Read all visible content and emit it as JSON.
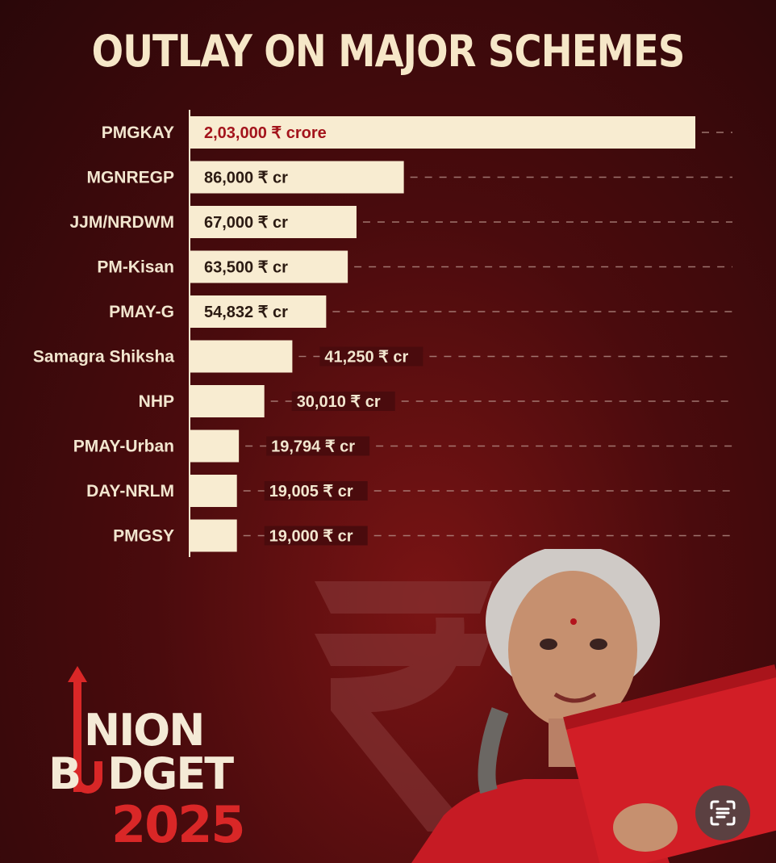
{
  "title": "OUTLAY ON MAJOR SCHEMES",
  "chart_data": {
    "type": "bar",
    "orientation": "horizontal",
    "title": "OUTLAY ON MAJOR SCHEMES",
    "xlabel": "",
    "ylabel": "",
    "xlim": [
      0,
      203000
    ],
    "grid": false,
    "categories": [
      "PMGKAY",
      "MGNREGP",
      "JJM/NRDWM",
      "PM-Kisan",
      "PMAY-G",
      "Samagra Shiksha",
      "NHP",
      "PMAY-Urban",
      "DAY-NRLM",
      "PMGSY"
    ],
    "values": [
      203000,
      86000,
      67000,
      63500,
      54832,
      41250,
      30010,
      19794,
      19005,
      19000
    ],
    "value_labels": [
      "2,03,000 ₹ crore",
      "86,000 ₹ cr",
      "67,000 ₹ cr",
      "63,500 ₹ cr",
      "54,832 ₹ cr",
      "41,250 ₹ cr",
      "30,010 ₹ cr",
      "19,794 ₹ cr",
      "19,005 ₹ cr",
      "19,000 ₹ cr"
    ],
    "label_inside": [
      true,
      true,
      true,
      true,
      true,
      false,
      false,
      false,
      false,
      false
    ],
    "highlight_index": 0
  },
  "logo": {
    "line1": "NION",
    "line2": "B",
    "line2b": "DGET",
    "line3": "2025"
  },
  "colors": {
    "background": "#4a0b0d",
    "bar": "#f8ecd1",
    "title": "#f6e7c8",
    "highlight_text": "#a3141c",
    "logo_red": "#d92727"
  },
  "icons": {
    "scan_button": "text-scan-icon",
    "background_symbol": "rupee-icon"
  }
}
